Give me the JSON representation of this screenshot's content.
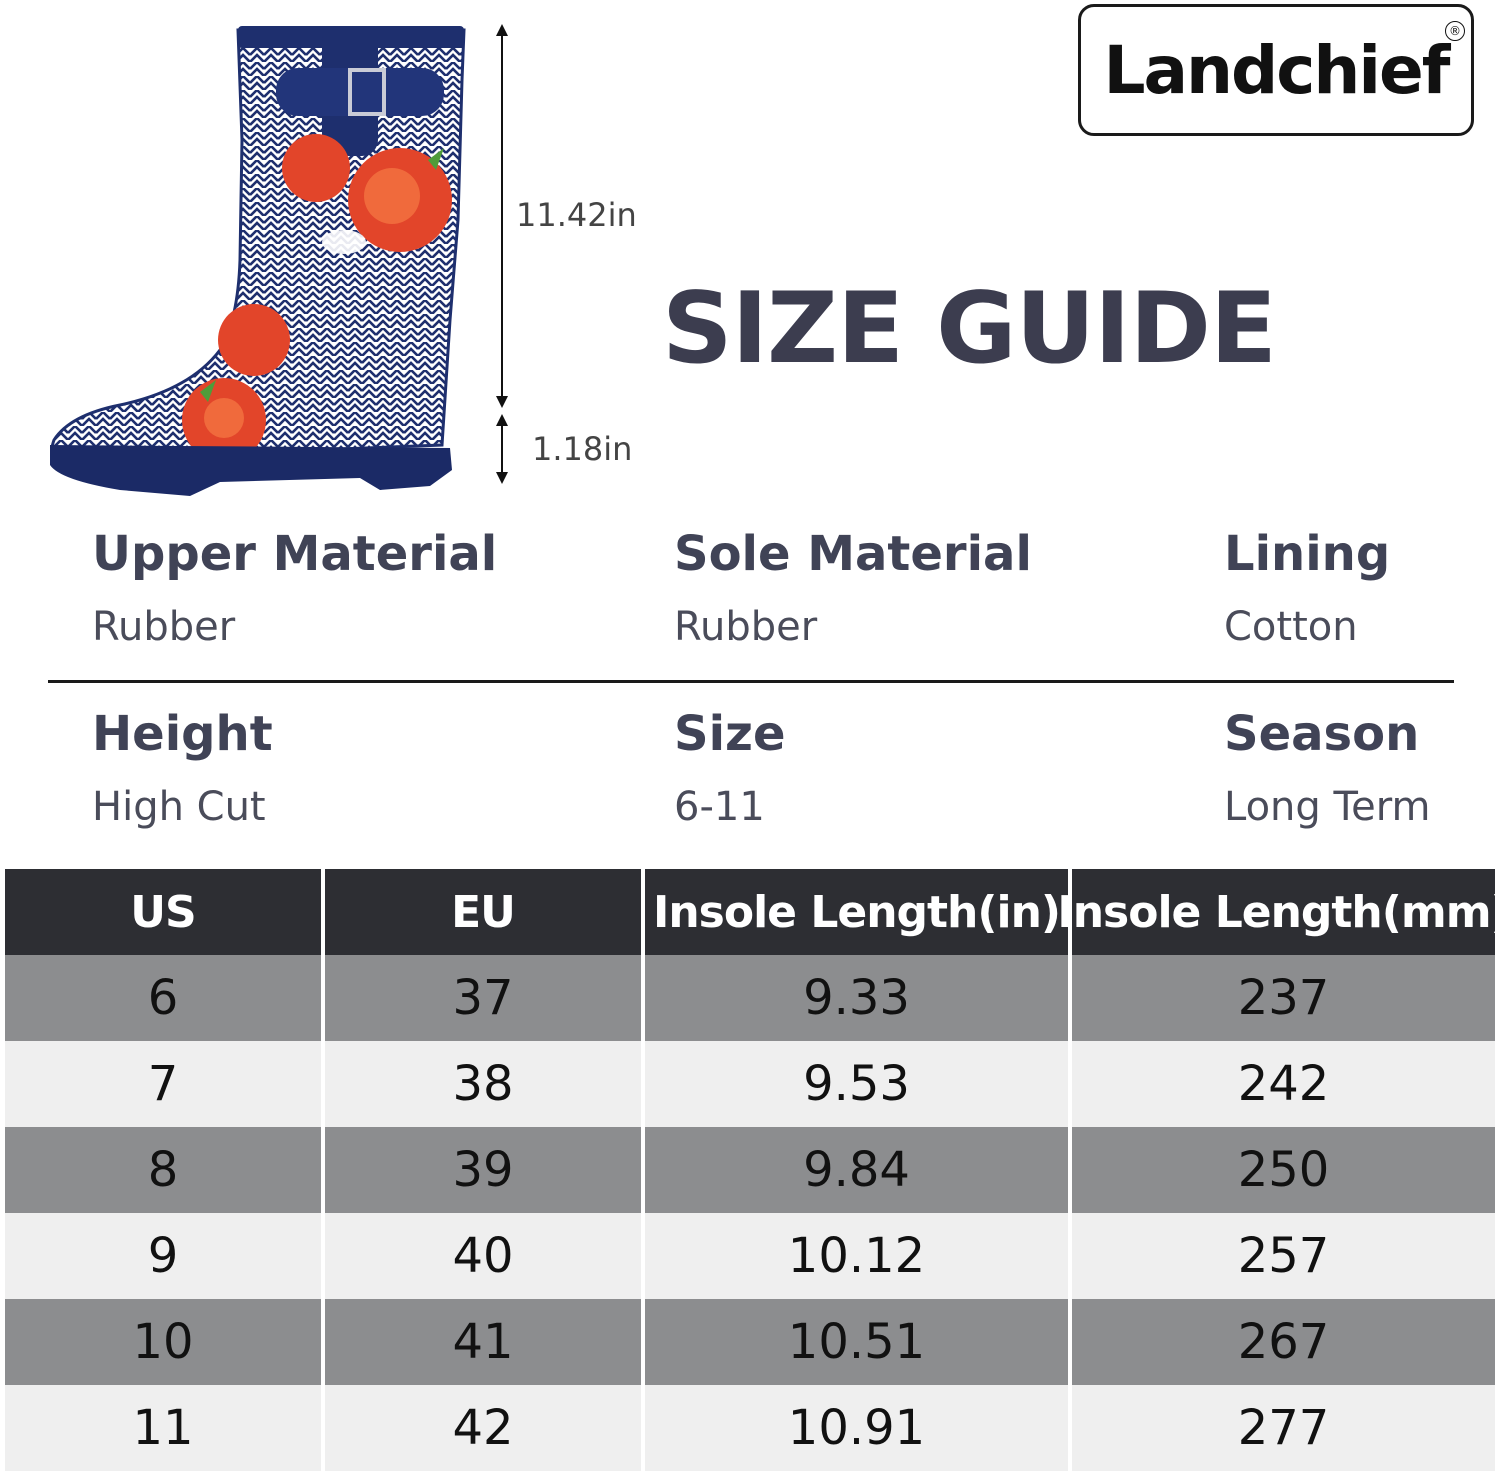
{
  "logo": {
    "text": "Landchief",
    "registered": "®"
  },
  "title": "SIZE GUIDE",
  "dimensions": {
    "upper_height": "11.42in",
    "heel_height": "1.18in"
  },
  "specs": [
    {
      "label": "Upper Material",
      "value": "Rubber"
    },
    {
      "label": "Sole Material",
      "value": "Rubber"
    },
    {
      "label": "Lining",
      "value": "Cotton"
    },
    {
      "label": "Height",
      "value": "High Cut"
    },
    {
      "label": "Size",
      "value": "6-11"
    },
    {
      "label": "Season",
      "value": "Long Term"
    }
  ],
  "table": {
    "headers": [
      "US",
      "EU",
      "Insole Length(in)",
      "Insole Length(mm)"
    ],
    "rows": [
      [
        "6",
        "37",
        "9.33",
        "237"
      ],
      [
        "7",
        "38",
        "9.53",
        "242"
      ],
      [
        "8",
        "39",
        "9.84",
        "250"
      ],
      [
        "9",
        "40",
        "10.12",
        "257"
      ],
      [
        "10",
        "41",
        "10.51",
        "267"
      ],
      [
        "11",
        "42",
        "10.91",
        "277"
      ]
    ]
  },
  "colors": {
    "boot_navy": "#1e2f6e",
    "flower_red": "#e2452a",
    "header_bg": "#2d2e33",
    "row_dark": "#8c8d8f",
    "row_light": "#efefef"
  }
}
